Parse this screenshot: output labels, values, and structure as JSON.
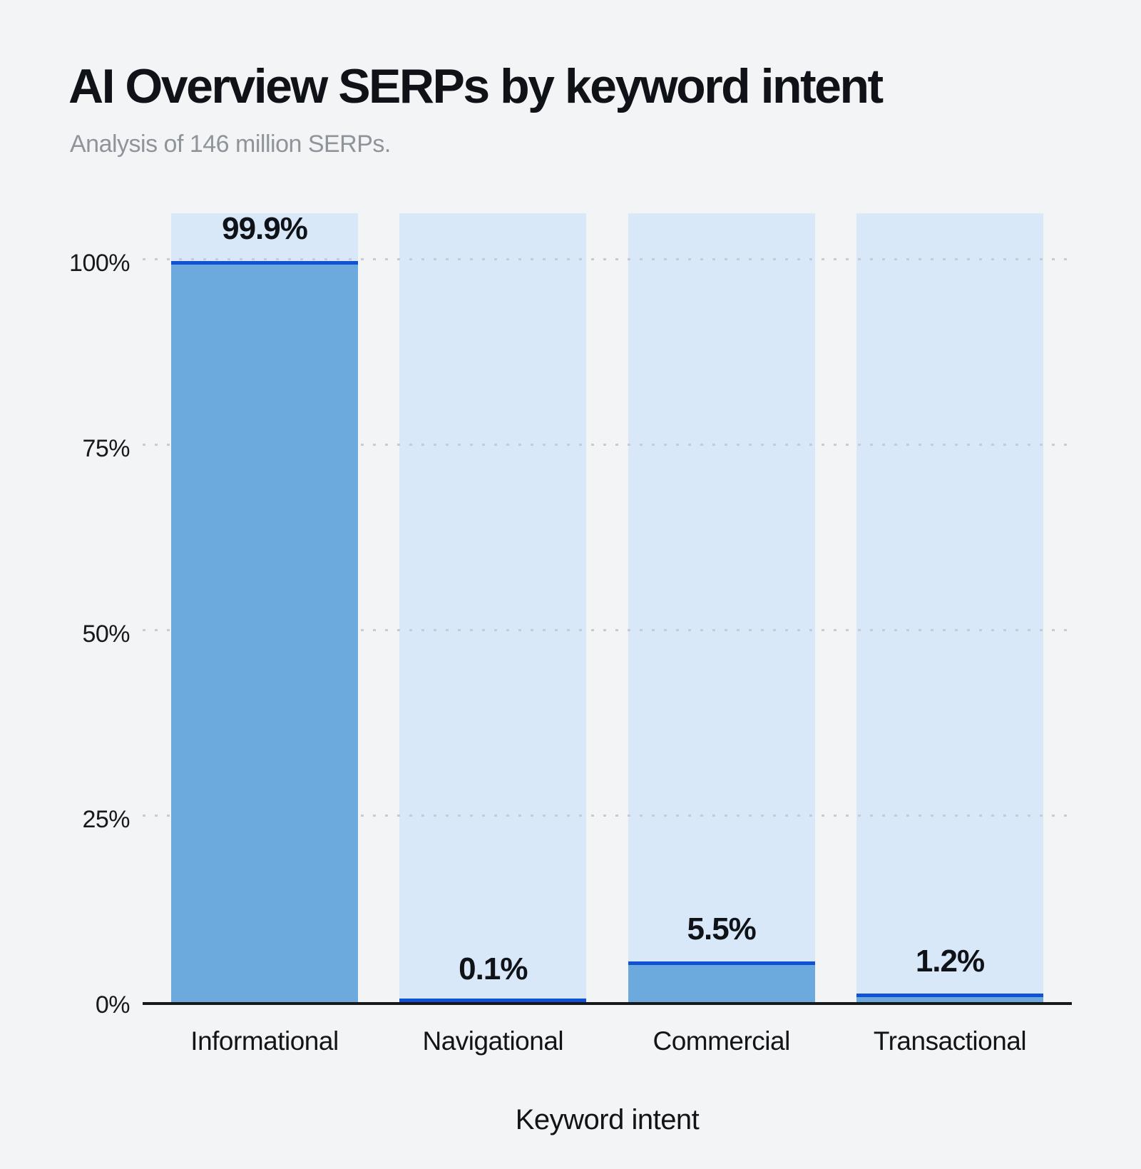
{
  "header": {
    "title": "AI Overview SERPs by keyword intent",
    "subtitle": "Analysis of 146 million SERPs."
  },
  "chart_data": {
    "type": "bar",
    "title": "AI Overview SERPs by keyword intent",
    "subtitle": "Analysis of 146 million SERPs.",
    "categories": [
      "Informational",
      "Navigational",
      "Commercial",
      "Transactional"
    ],
    "values": [
      99.9,
      0.1,
      5.5,
      1.2
    ],
    "value_labels": [
      "99.9%",
      "0.1%",
      "5.5%",
      "1.2%"
    ],
    "xlabel": "Keyword intent",
    "ylabel": "",
    "y_ticks": [
      0,
      25,
      50,
      75,
      100
    ],
    "y_tick_labels": [
      "0%",
      "25%",
      "50%",
      "75%",
      "100%"
    ],
    "ylim": [
      0,
      106.7
    ],
    "grid": "horizontal-dotted",
    "legend_position": "none",
    "colors": {
      "page_background": "#f3f4f6",
      "background_bar": "#d9e8f9",
      "fill_bar": "#6caade",
      "fill_top_line": "#1152d5",
      "grid_dots": "#c8ccd1",
      "axis": "#17181a",
      "title_text": "#0f1217",
      "subtitle_text": "#8f949b"
    }
  }
}
